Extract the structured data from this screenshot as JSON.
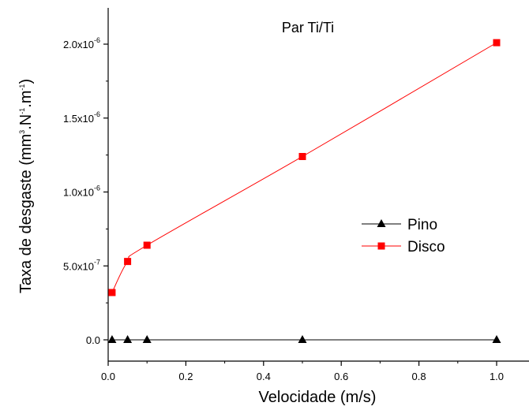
{
  "chart_data": {
    "type": "line",
    "title": "Par Ti/Ti",
    "xlabel": "Velocidade (m/s)",
    "ylabel": "Taxa de desgaste (mm3.N-1.m-1)",
    "xlim": [
      0.0,
      1.1
    ],
    "ylim": [
      -1e-07,
      2.2e-06
    ],
    "x_ticks": [
      0.0,
      0.2,
      0.4,
      0.6,
      0.8,
      1.0
    ],
    "x_tick_labels": [
      "0.0",
      "0.2",
      "0.4",
      "0.6",
      "0.8",
      "1.0"
    ],
    "y_ticks": [
      0.0,
      5e-07,
      1e-06,
      1.5e-06,
      2e-06
    ],
    "y_tick_labels": [
      {
        "mant": "0.0",
        "exp": ""
      },
      {
        "mant": "5.0x10",
        "exp": "-7"
      },
      {
        "mant": "1.0x10",
        "exp": "-6"
      },
      {
        "mant": "1.5x10",
        "exp": "-6"
      },
      {
        "mant": "2.0x10",
        "exp": "-6"
      }
    ],
    "legend_position": "center-right",
    "series": [
      {
        "name": "Pino",
        "color": "#000000",
        "marker": "triangle",
        "x": [
          0.01,
          0.05,
          0.1,
          0.5,
          1.0
        ],
        "y": [
          0.0,
          0.0,
          0.0,
          0.0,
          0.0
        ]
      },
      {
        "name": "Disco",
        "color": "#ff0000",
        "marker": "square",
        "x": [
          0.01,
          0.05,
          0.1,
          0.5,
          1.0
        ],
        "y": [
          3.2e-07,
          5.3e-07,
          6.4e-07,
          1.24e-06,
          2.01e-06
        ]
      }
    ]
  }
}
